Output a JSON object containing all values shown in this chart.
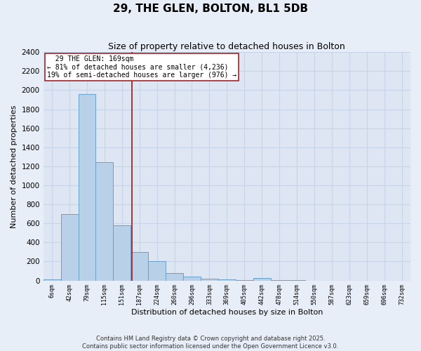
{
  "title": "29, THE GLEN, BOLTON, BL1 5DB",
  "subtitle": "Size of property relative to detached houses in Bolton",
  "xlabel": "Distribution of detached houses by size in Bolton",
  "ylabel": "Number of detached properties",
  "bar_color": "#b8d0e8",
  "bar_edge_color": "#6aa0c8",
  "background_color": "#dde6f2",
  "grid_color": "#c8d4e8",
  "bin_labels": [
    "6sqm",
    "42sqm",
    "79sqm",
    "115sqm",
    "151sqm",
    "187sqm",
    "224sqm",
    "260sqm",
    "296sqm",
    "333sqm",
    "369sqm",
    "405sqm",
    "442sqm",
    "478sqm",
    "514sqm",
    "550sqm",
    "587sqm",
    "623sqm",
    "659sqm",
    "696sqm",
    "732sqm"
  ],
  "bar_heights": [
    10,
    700,
    1960,
    1240,
    580,
    300,
    200,
    75,
    40,
    20,
    10,
    5,
    30,
    5,
    5,
    0,
    0,
    0,
    0,
    0,
    0
  ],
  "ylim": [
    0,
    2400
  ],
  "yticks": [
    0,
    200,
    400,
    600,
    800,
    1000,
    1200,
    1400,
    1600,
    1800,
    2000,
    2200,
    2400
  ],
  "vline_x": 4.55,
  "vline_color": "#aa2222",
  "annotation_title": "29 THE GLEN: 169sqm",
  "annotation_line1": "← 81% of detached houses are smaller (4,236)",
  "annotation_line2": "19% of semi-detached houses are larger (976) →",
  "annotation_box_facecolor": "#ffffff",
  "annotation_box_edgecolor": "#aa2222",
  "footer1": "Contains HM Land Registry data © Crown copyright and database right 2025.",
  "footer2": "Contains public sector information licensed under the Open Government Licence v3.0.",
  "fig_bg": "#e8eef7"
}
